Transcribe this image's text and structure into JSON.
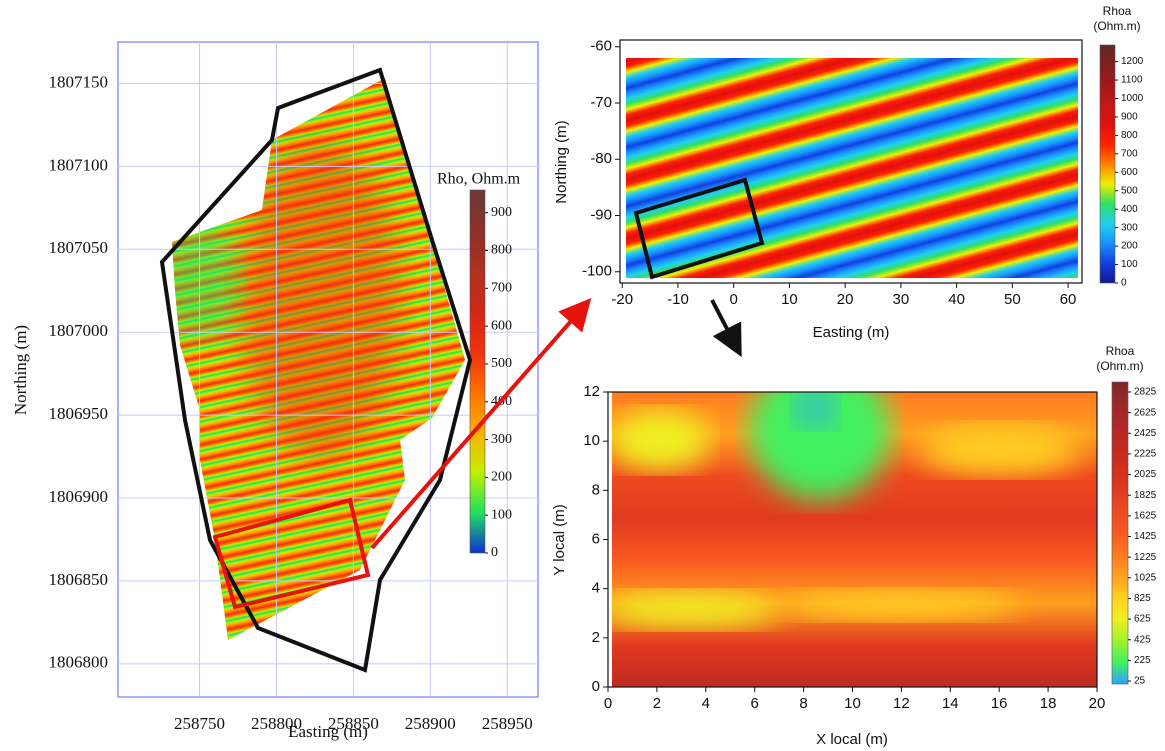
{
  "chart_data": [
    {
      "type": "heatmap",
      "xlabel": "Easting (m)",
      "ylabel": "Northing (m)",
      "xlim": [
        258697,
        258970
      ],
      "ylim": [
        1806780,
        1807175
      ],
      "xticks": [
        258750,
        258800,
        258850,
        258900,
        258950
      ],
      "yticks": [
        1806800,
        1806850,
        1806900,
        1806950,
        1807000,
        1807050,
        1807100,
        1807150
      ],
      "grid": true,
      "colorbar": {
        "title": "Rho, Ohm.m",
        "lim": [
          0,
          960
        ],
        "ticks": [
          0,
          100,
          200,
          300,
          400,
          500,
          600,
          700,
          800,
          900
        ],
        "colors": [
          "#1030d0",
          "#20e060",
          "#c0f000",
          "#ffb000",
          "#ff7000",
          "#f03010",
          "#d02818",
          "#b03020",
          "#8c3028",
          "#6a3a38"
        ]
      }
    },
    {
      "type": "heatmap",
      "xlabel": "Easting (m)",
      "ylabel": "Northing (m)",
      "xlim": [
        -20.4,
        62.5
      ],
      "ylim": [
        -102,
        -58.8
      ],
      "xticks": [
        -20,
        -10,
        0,
        10,
        20,
        30,
        40,
        50,
        60
      ],
      "yticks": [
        -100,
        -90,
        -80,
        -70,
        -60
      ],
      "grid": false,
      "colorbar": {
        "title": [
          "Rhoa",
          "(Ohm.m)"
        ],
        "lim": [
          0,
          1290
        ],
        "ticks": [
          0,
          100,
          200,
          300,
          400,
          500,
          600,
          700,
          800,
          900,
          1000,
          1100,
          1200
        ],
        "colors": [
          "#101890",
          "#1040e0",
          "#1890ff",
          "#20d0f0",
          "#30e060",
          "#f0f000",
          "#ff8000",
          "#ff2000",
          "#e01010",
          "#c01818",
          "#a01818",
          "#802020",
          "#602828"
        ]
      }
    },
    {
      "type": "heatmap",
      "xlabel": "X local (m)",
      "ylabel": "Y local (m)",
      "xlim": [
        0,
        20
      ],
      "ylim": [
        0,
        12
      ],
      "xticks": [
        0,
        2,
        4,
        6,
        8,
        10,
        12,
        14,
        16,
        18,
        20
      ],
      "yticks": [
        0,
        2,
        4,
        6,
        8,
        10,
        12
      ],
      "grid": false,
      "colorbar": {
        "title": [
          "Rhoa",
          "(Ohm.m)"
        ],
        "lim": [
          -4,
          2922
        ],
        "ticks": [
          25,
          225,
          425,
          625,
          825,
          1025,
          1225,
          1425,
          1625,
          1825,
          2025,
          2225,
          2425,
          2625,
          2825
        ],
        "colors": [
          "#30a0ff",
          "#40f060",
          "#a0f030",
          "#f0f020",
          "#ffd020",
          "#ffa020",
          "#ff7a20",
          "#f85a20",
          "#ee4a20",
          "#e03a20",
          "#d03020",
          "#c02a20",
          "#b02828",
          "#9a2828",
          "#802828"
        ]
      }
    }
  ]
}
